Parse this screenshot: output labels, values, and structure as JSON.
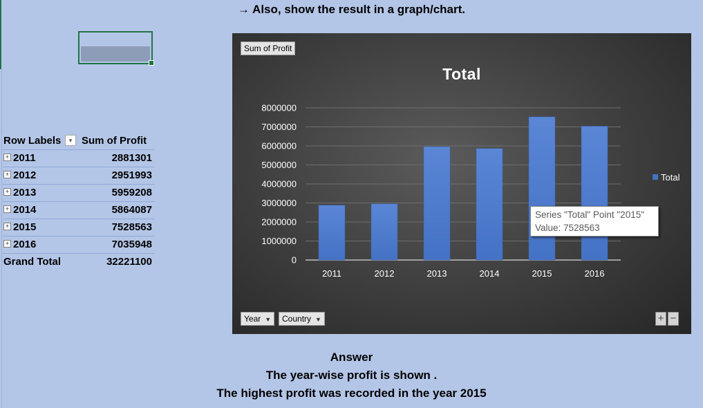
{
  "instruction": "→ Also, show the result in a graph/chart.",
  "pivot": {
    "header_label": "Row Labels",
    "header_value": "Sum of Profit",
    "filter_glyph": "▾",
    "expand_glyph": "+",
    "rows": [
      {
        "label": "2011",
        "value": "2881301"
      },
      {
        "label": "2012",
        "value": "2951993"
      },
      {
        "label": "2013",
        "value": "5959208"
      },
      {
        "label": "2014",
        "value": "5864087"
      },
      {
        "label": "2015",
        "value": "7528563"
      },
      {
        "label": "2016",
        "value": "7035948"
      }
    ],
    "total_label": "Grand Total",
    "total_value": "32221100"
  },
  "chart": {
    "value_field_button": "Sum of Profit",
    "axis_field_buttons": [
      "Year",
      "Country"
    ],
    "dropdown_glyph": "▼",
    "zoom_in": "+",
    "zoom_out": "−",
    "tooltip_line1": "Series \"Total\" Point \"2015\"",
    "tooltip_line2": "Value: 7528563"
  },
  "chart_data": {
    "type": "bar",
    "title": "Total",
    "categories": [
      "2011",
      "2012",
      "2013",
      "2014",
      "2015",
      "2016"
    ],
    "series": [
      {
        "name": "Total",
        "values": [
          2881301,
          2951993,
          5959208,
          5864087,
          7528563,
          7035948
        ]
      }
    ],
    "ylim": [
      0,
      8000000
    ],
    "y_ticks": [
      "0",
      "1000000",
      "2000000",
      "3000000",
      "4000000",
      "5000000",
      "6000000",
      "7000000",
      "8000000"
    ],
    "grid": true,
    "legend": "right",
    "bar_color": "#4472c4"
  },
  "answer": {
    "heading": "Answer",
    "line1": "The year-wise profit is shown .",
    "line2": "The highest profit was recorded in the year 2015"
  }
}
